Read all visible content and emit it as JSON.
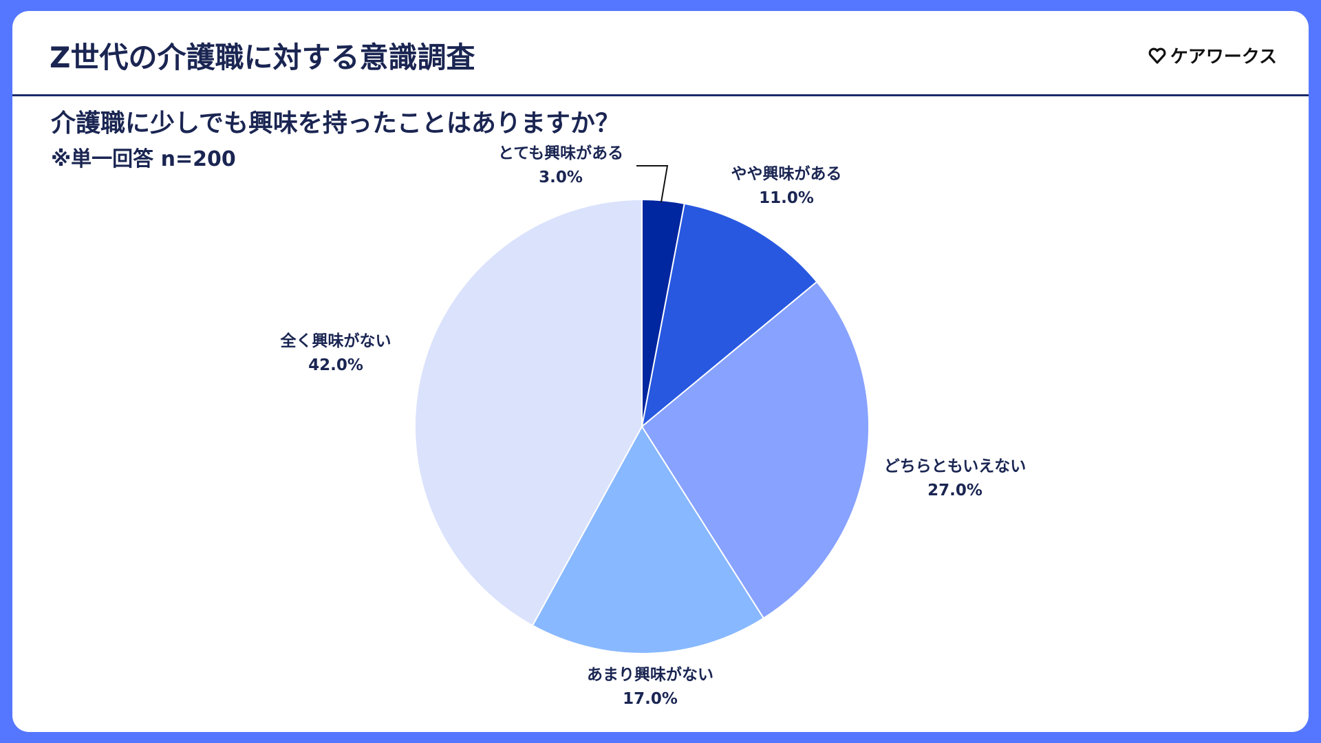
{
  "header": {
    "title": "Z世代の介護職に対する意識調査",
    "brand_name": "ケアワークス",
    "brand_icon": "heart-icon"
  },
  "question": "介護職に少しでも興味を持ったことはありますか？",
  "note": "※単一回答 n=200",
  "colors": {
    "background": "#5577FF",
    "text": "#1a2552"
  },
  "chart_data": {
    "type": "pie",
    "title": "介護職に少しでも興味を持ったことはありますか？",
    "subtitle": "※単一回答 n=200",
    "unit": "%",
    "start": "12 o'clock, clockwise",
    "slices": [
      {
        "label": "とても興味がある",
        "value": 3.0,
        "value_label": "3.0%",
        "color": "#0026A0"
      },
      {
        "label": "やや興味がある",
        "value": 11.0,
        "value_label": "11.0%",
        "color": "#2858E0"
      },
      {
        "label": "どちらともいえない",
        "value": 27.0,
        "value_label": "27.0%",
        "color": "#88A2FF"
      },
      {
        "label": "あまり興味がない",
        "value": 17.0,
        "value_label": "17.0%",
        "color": "#88B8FF"
      },
      {
        "label": "全く興味がない",
        "value": 42.0,
        "value_label": "42.0%",
        "color": "#DAE2FC"
      }
    ]
  }
}
